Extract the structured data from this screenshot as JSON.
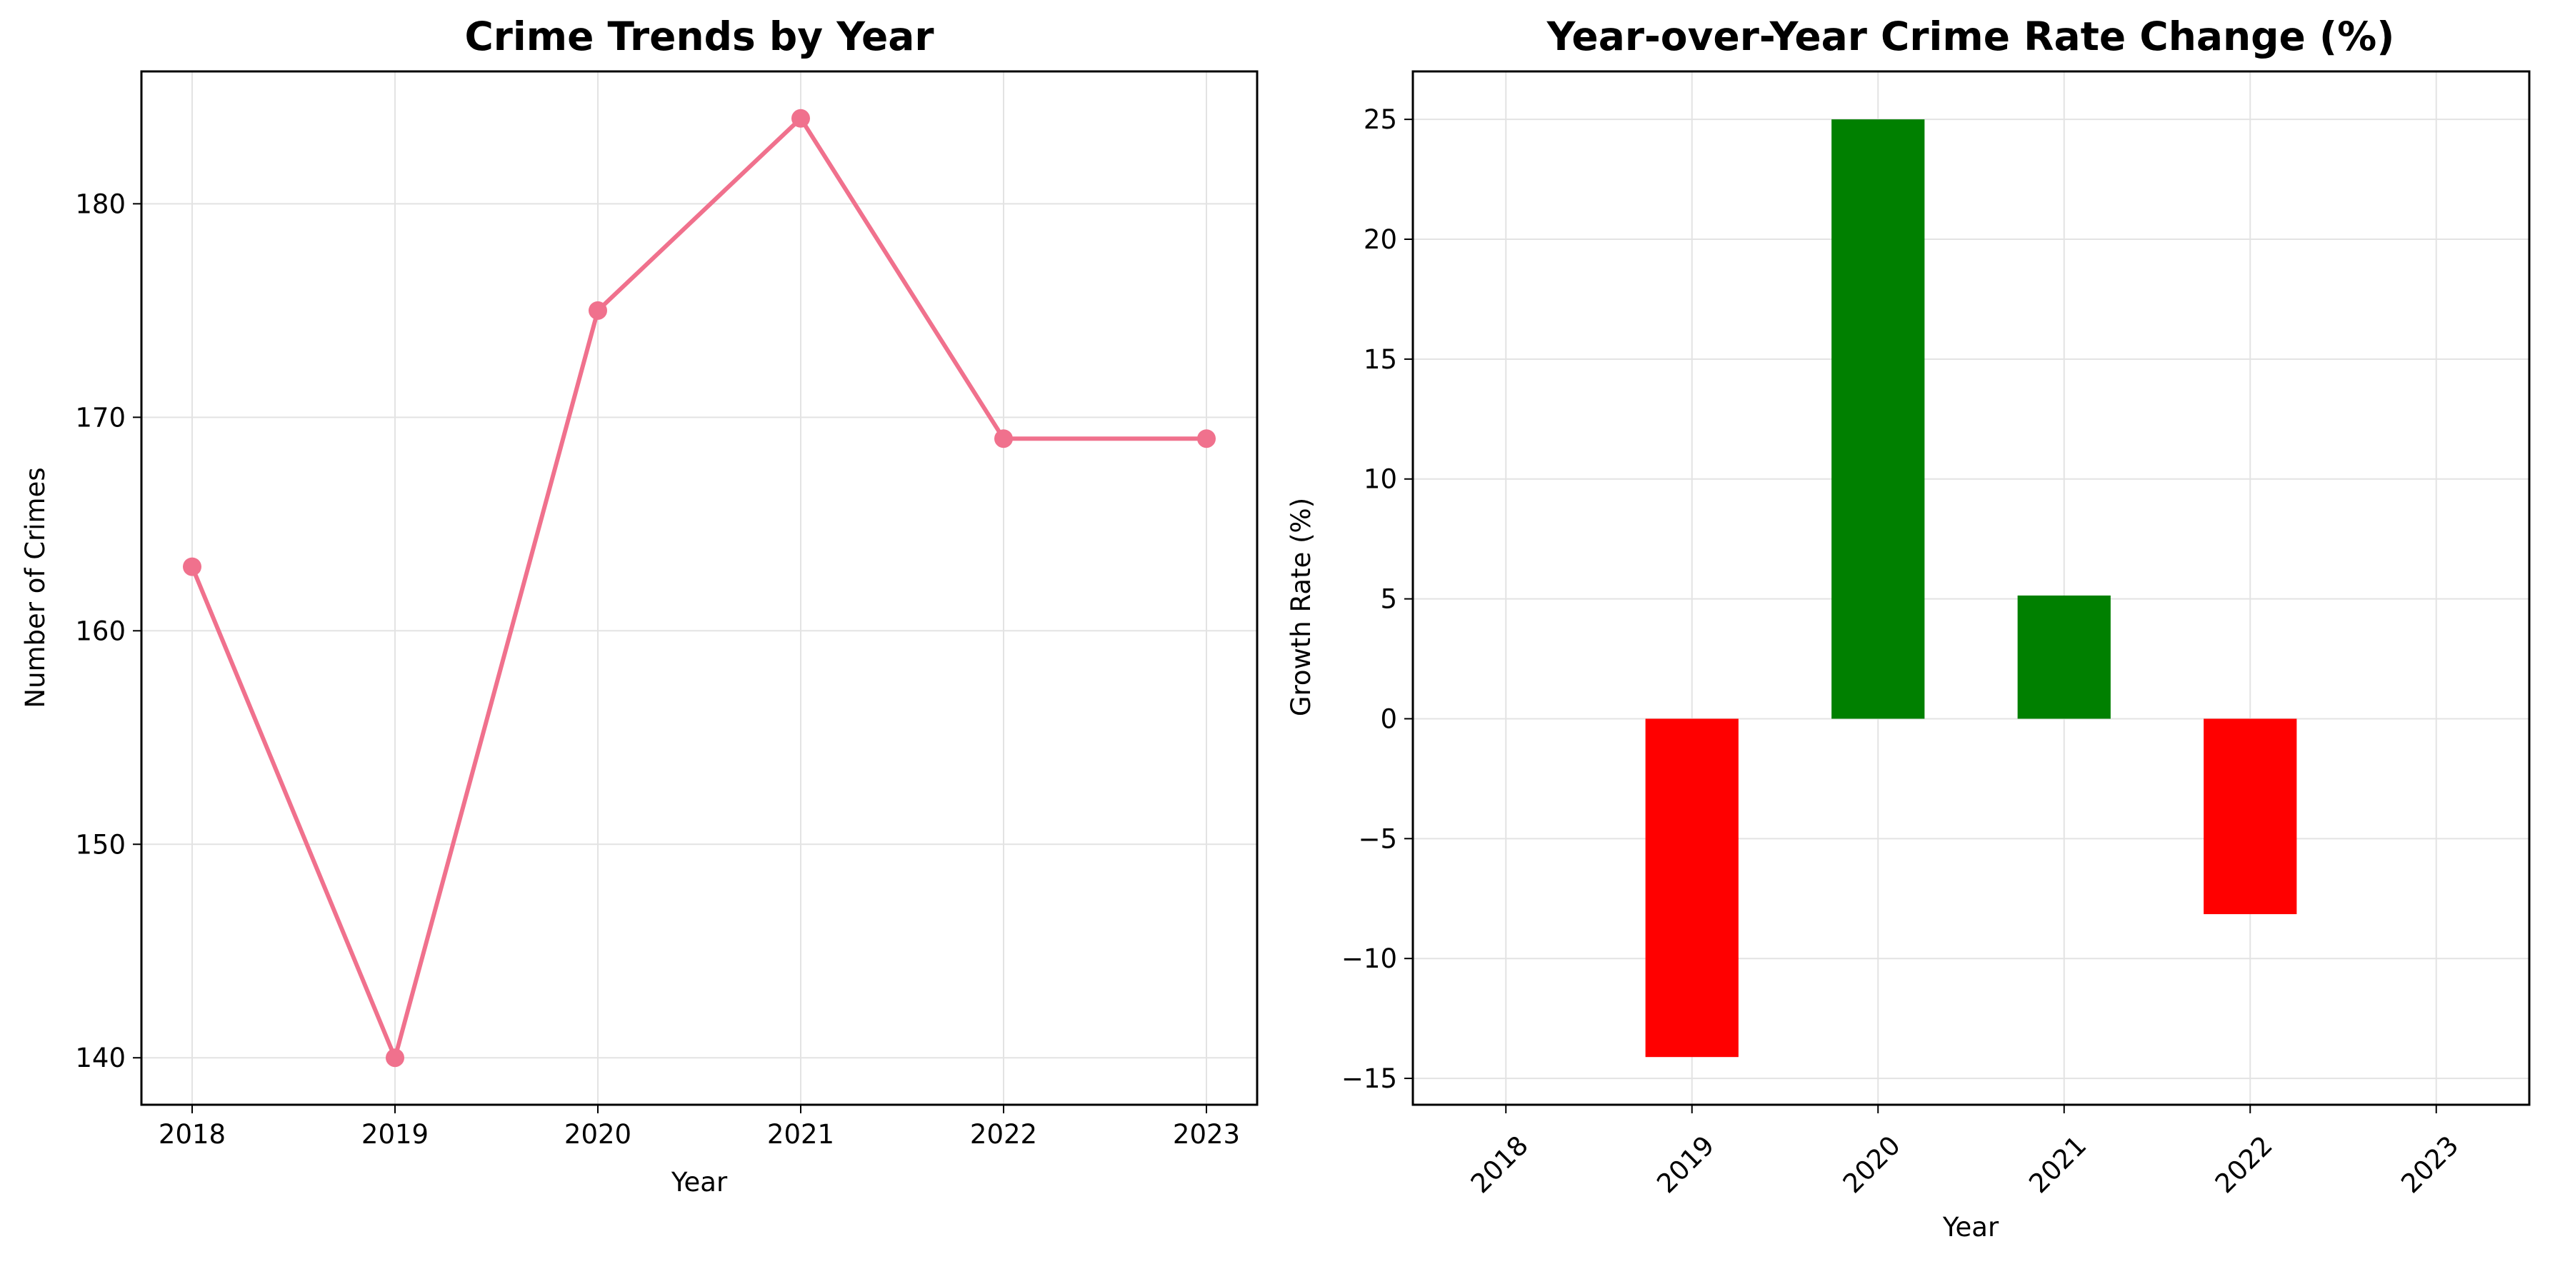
{
  "figure": {
    "background": "#ffffff"
  },
  "chart_data": [
    {
      "type": "line",
      "title": "Crime Trends by Year",
      "xlabel": "Year",
      "ylabel": "Number of Crimes",
      "x": [
        "2018",
        "2019",
        "2020",
        "2021",
        "2022",
        "2023"
      ],
      "series": [
        {
          "values": [
            163,
            140,
            175,
            184,
            169,
            169
          ],
          "color": "#f0718d",
          "marker": "circle"
        }
      ],
      "xlim": [
        -0.25,
        5.25
      ],
      "ylim": [
        137.8,
        186.2
      ],
      "yticks": [
        140,
        150,
        160,
        170,
        180
      ],
      "grid": true
    },
    {
      "type": "bar",
      "title": "Year-over-Year Crime Rate Change (%)",
      "xlabel": "Year",
      "ylabel": "Growth Rate (%)",
      "categories": [
        "2018",
        "2019",
        "2020",
        "2021",
        "2022",
        "2023"
      ],
      "values": [
        null,
        -14.11,
        25.0,
        5.14,
        -8.15,
        0.0
      ],
      "positive_color": "#008000",
      "negative_color": "#ff0000",
      "xlim": [
        -0.5,
        5.5
      ],
      "ylim": [
        -16.1,
        27.0
      ],
      "yticks": [
        -15,
        -10,
        -5,
        0,
        5,
        10,
        15,
        20,
        25
      ],
      "xtick_rotation": 45,
      "grid": true
    }
  ]
}
